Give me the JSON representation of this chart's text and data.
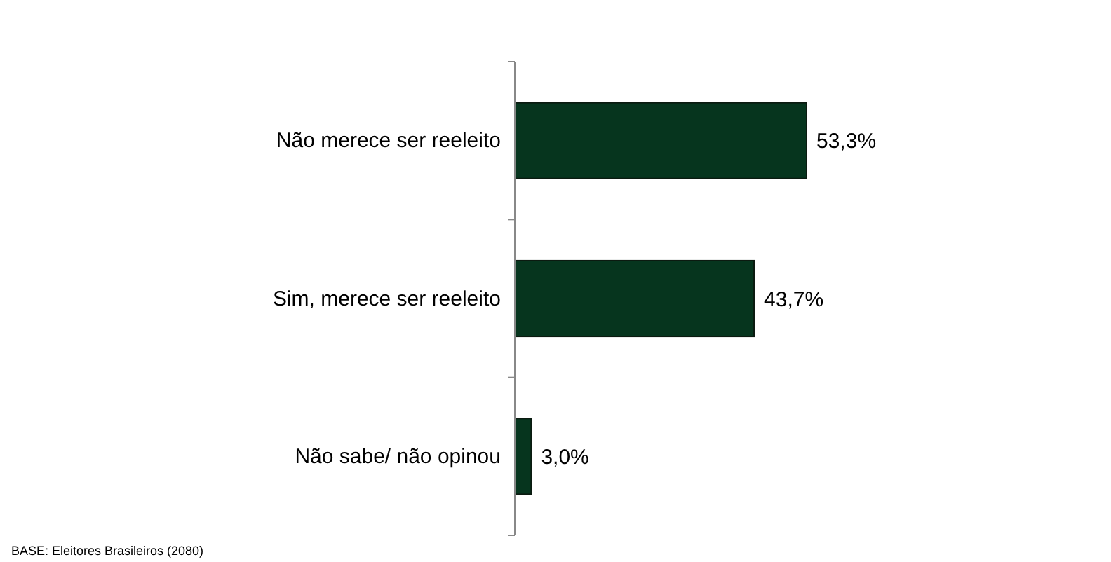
{
  "chart_data": {
    "type": "bar",
    "orientation": "horizontal",
    "categories": [
      "Não merece ser reeleito",
      "Sim, merece ser reeleito",
      "Não sabe/ não opinou"
    ],
    "values": [
      53.3,
      43.7,
      3.0
    ],
    "color": "#06351e",
    "value_labels": [
      "53,3%",
      "43,7%",
      "3,0%"
    ],
    "annotations": [
      "BASE: Eleitores Brasileiros (2080)"
    ]
  }
}
